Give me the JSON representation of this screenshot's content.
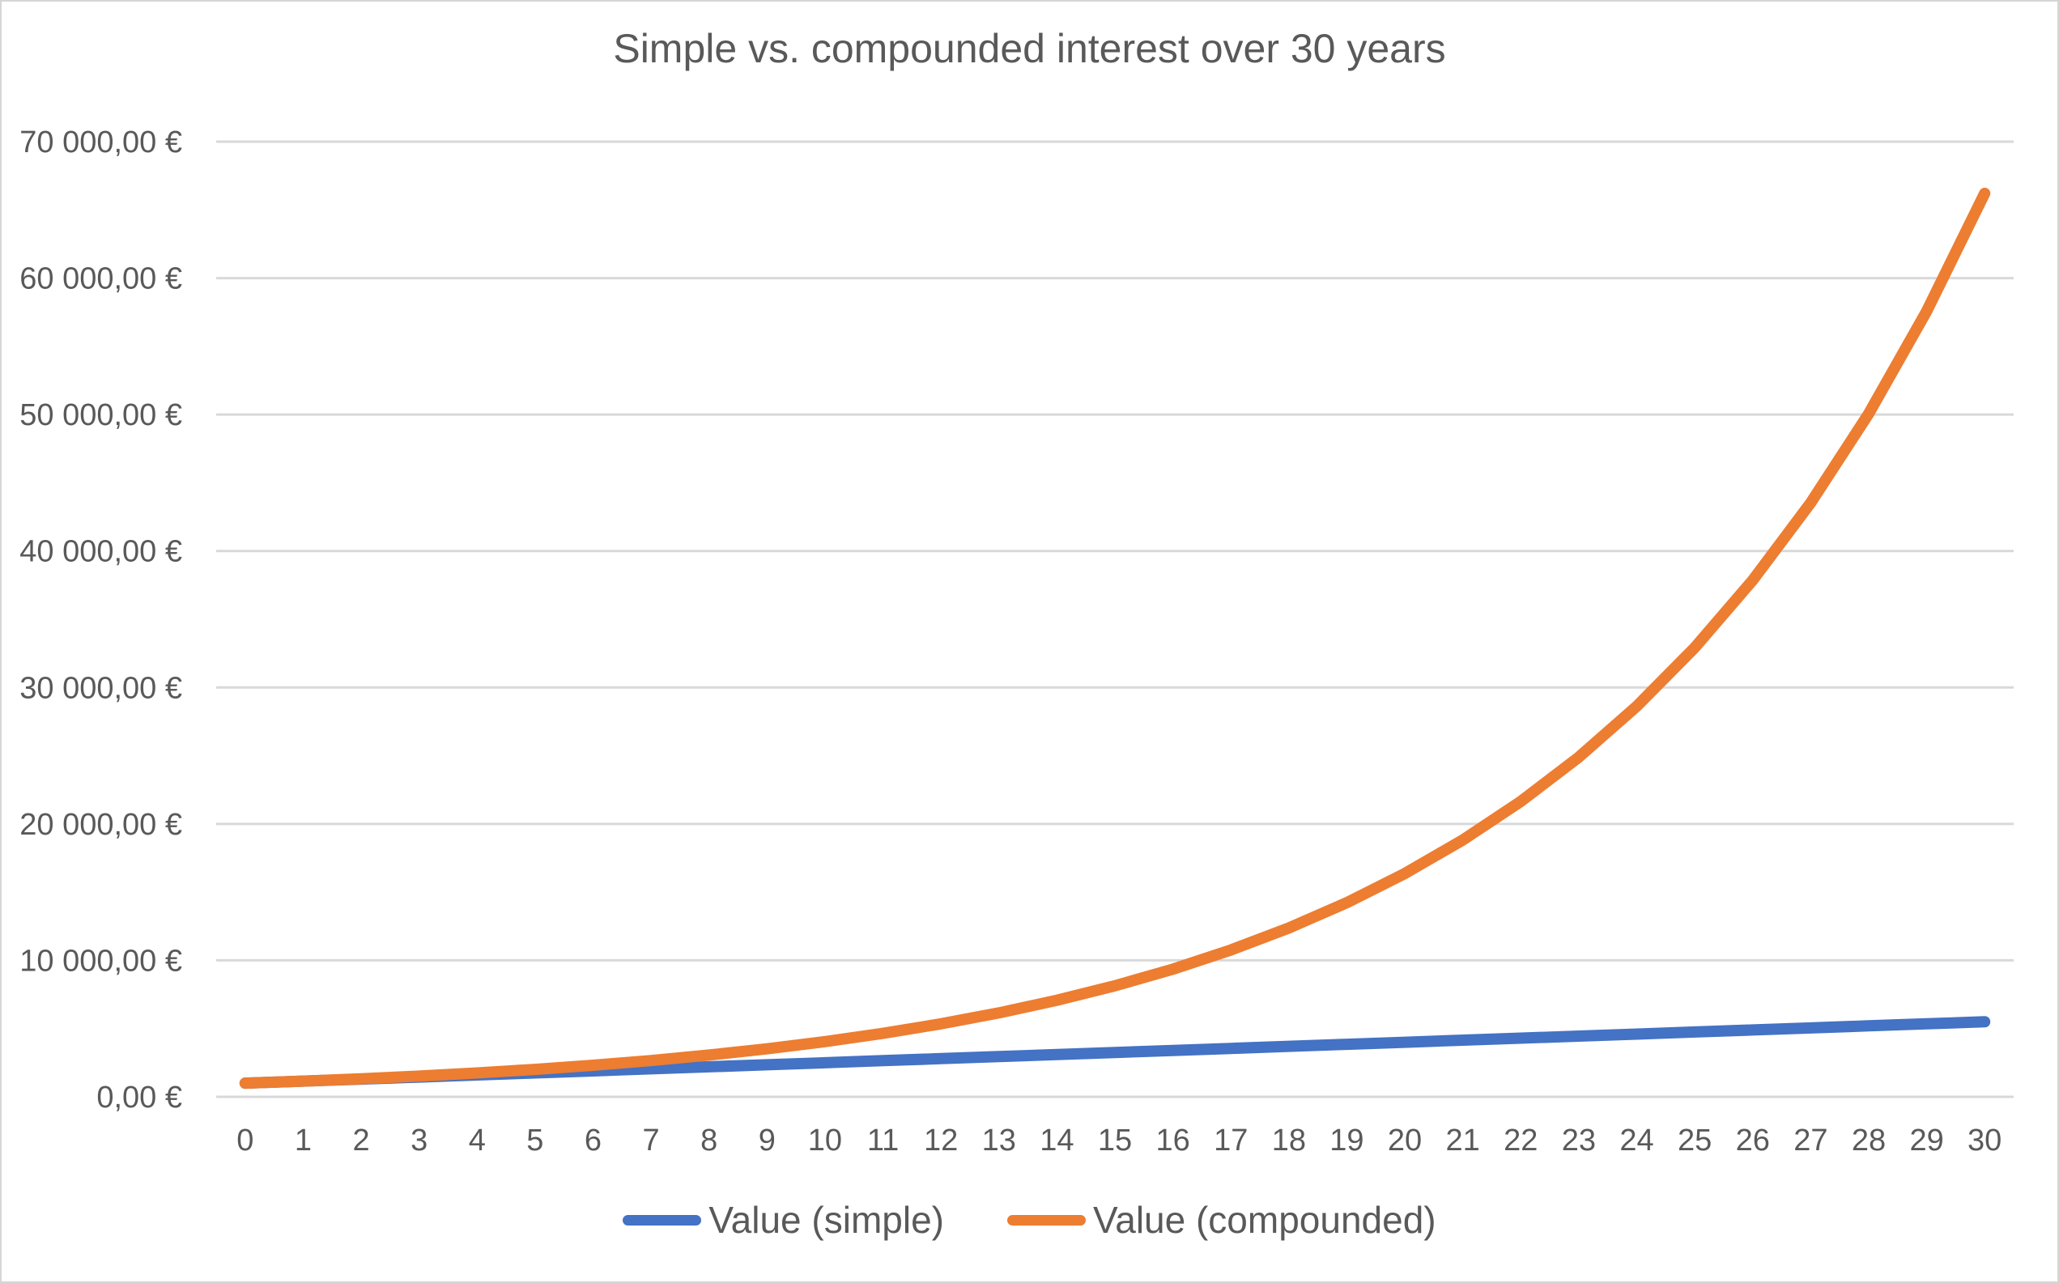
{
  "chart_data": {
    "type": "line",
    "title": "Simple vs. compounded interest over 30 years",
    "xlabel": "",
    "ylabel": "",
    "x_categories": [
      "0",
      "1",
      "2",
      "3",
      "4",
      "5",
      "6",
      "7",
      "8",
      "9",
      "10",
      "11",
      "12",
      "13",
      "14",
      "15",
      "16",
      "17",
      "18",
      "19",
      "20",
      "21",
      "22",
      "23",
      "24",
      "25",
      "26",
      "27",
      "28",
      "29",
      "30"
    ],
    "ylim": [
      0,
      70000
    ],
    "y_ticks": [
      {
        "value": 0,
        "label": "0,00 €"
      },
      {
        "value": 10000,
        "label": "10 000,00 €"
      },
      {
        "value": 20000,
        "label": "20 000,00 €"
      },
      {
        "value": 30000,
        "label": "30 000,00 €"
      },
      {
        "value": 40000,
        "label": "40 000,00 €"
      },
      {
        "value": 50000,
        "label": "50 000,00 €"
      },
      {
        "value": 60000,
        "label": "60 000,00 €"
      },
      {
        "value": 70000,
        "label": "70 000,00 €"
      }
    ],
    "grid": "horizontal",
    "grid_color": "#d9d9d9",
    "text_color": "#595959",
    "legend_position": "bottom",
    "series": [
      {
        "name": "Value (simple)",
        "color": "#4472C4",
        "values": [
          1000,
          1150,
          1300,
          1450,
          1600,
          1750,
          1900,
          2050,
          2200,
          2350,
          2500,
          2650,
          2800,
          2950,
          3100,
          3250,
          3400,
          3550,
          3700,
          3850,
          4000,
          4150,
          4300,
          4450,
          4600,
          4750,
          4900,
          5050,
          5200,
          5350,
          5500
        ]
      },
      {
        "name": "Value (compounded)",
        "color": "#ED7D31",
        "values": [
          1000,
          1150,
          1322.5,
          1520.88,
          1749.01,
          2011.36,
          2313.06,
          2660.02,
          3059.02,
          3517.88,
          4045.56,
          4652.39,
          5350.25,
          6152.79,
          7075.71,
          8137.06,
          9357.62,
          10761.26,
          12375.45,
          14231.77,
          16366.54,
          18821.52,
          21644.75,
          24891.46,
          28625.18,
          32918.95,
          37856.8,
          43535.31,
          50065.61,
          57575.45,
          66211.77
        ]
      }
    ]
  }
}
